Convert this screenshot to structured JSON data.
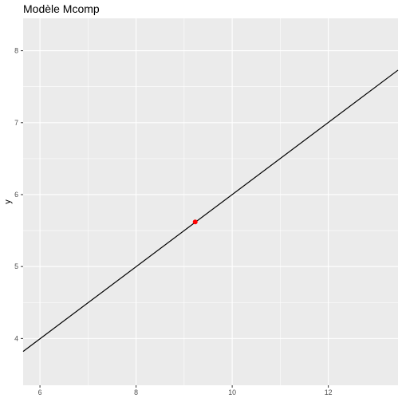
{
  "chart_data": {
    "type": "line",
    "title": "Modèle Mcomp",
    "xlabel": "",
    "ylabel": "y",
    "xlim": [
      5.65,
      13.45
    ],
    "ylim": [
      3.35,
      8.45
    ],
    "x_ticks": [
      6,
      8,
      10,
      12
    ],
    "y_ticks": [
      4,
      5,
      6,
      7,
      8
    ],
    "x_tick_labels": [
      "6",
      "8",
      "10",
      "12"
    ],
    "y_tick_labels": [
      "4",
      "5",
      "6",
      "7",
      "8"
    ],
    "grid": true,
    "series": [
      {
        "type": "line",
        "color": "#000000",
        "x": [
          5.65,
          13.45
        ],
        "y": [
          3.82,
          7.73
        ]
      },
      {
        "type": "point",
        "color": "#ff0000",
        "x": [
          9.23
        ],
        "y": [
          5.62
        ]
      }
    ],
    "panel_background": "#ebebeb",
    "grid_color": "#ffffff"
  }
}
